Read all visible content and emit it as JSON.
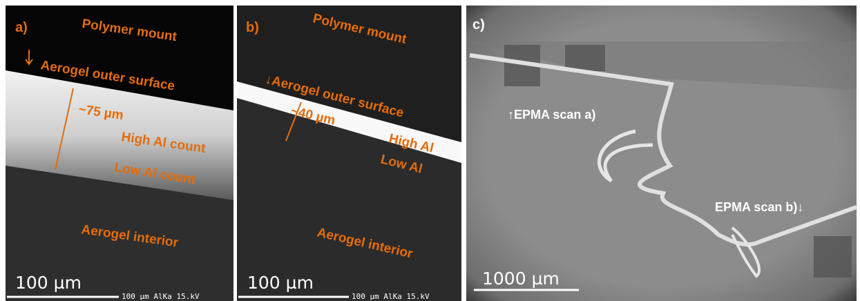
{
  "panels": [
    {
      "label": "a)",
      "annotations": [
        "Polymer mount",
        "Aerogel outer surface",
        "~75 µm",
        "High Al count",
        "Low Al count",
        "Aerogel interior"
      ],
      "scale_bar": "100 µm",
      "footer": "100 µm AlKa 15.kV"
    },
    {
      "label": "b)",
      "annotations": [
        "Polymer mount",
        "↓Aerogel outer surface",
        "~40 µm",
        "High Al",
        "Low Al",
        "Aerogel interior"
      ],
      "scale_bar": "100 µm",
      "footer": "100 µm AlKa 15.kV"
    },
    {
      "label": "c)",
      "annotations": [
        "↑EPMA scan a)",
        "EPMA scan b)↓"
      ],
      "scale_bar": "1000 µm"
    }
  ]
}
